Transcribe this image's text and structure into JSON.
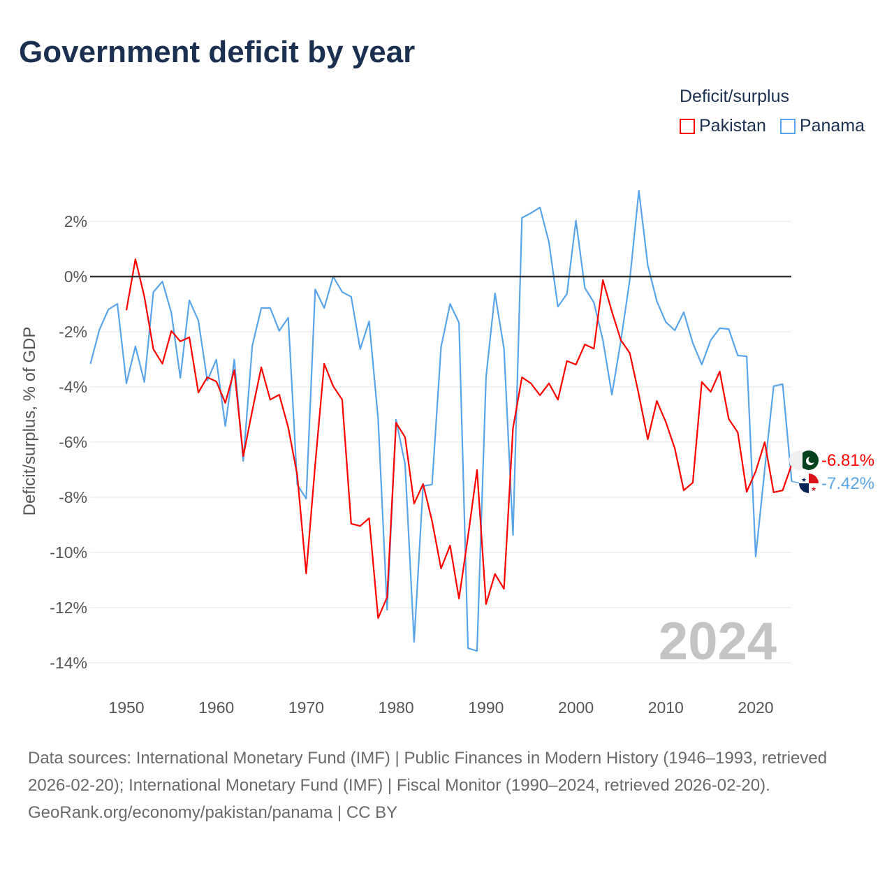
{
  "chart_data": {
    "type": "line",
    "title": "Government deficit by year",
    "xlabel": "",
    "ylabel": "Deficit/surplus, % of GDP",
    "xlim": [
      1946,
      2024
    ],
    "ylim": [
      -15,
      3.5
    ],
    "xticks": [
      1950,
      1960,
      1970,
      1980,
      1990,
      2000,
      2010,
      2020
    ],
    "yticks": [
      2,
      0,
      -2,
      -4,
      -6,
      -8,
      -10,
      -12,
      -14
    ],
    "ytick_labels": [
      "2%",
      "0%",
      "-2%",
      "-4%",
      "-6%",
      "-8%",
      "-10%",
      "-12%",
      "-14%"
    ],
    "grid": true,
    "legend_title": "Deficit/surplus",
    "legend_placement": "top-right",
    "watermark_year": "2024",
    "series": [
      {
        "name": "Pakistan",
        "color": "#ff0000",
        "start_year": 1950,
        "end_label": "-6.81%",
        "values": [
          -1.22,
          0.63,
          -0.73,
          -2.63,
          -3.16,
          -1.97,
          -2.35,
          -2.2,
          -4.2,
          -3.65,
          -3.8,
          -4.58,
          -3.39,
          -6.51,
          -4.86,
          -3.29,
          -4.46,
          -4.28,
          -5.47,
          -7.19,
          -10.76,
          -6.81,
          -3.16,
          -3.97,
          -4.46,
          -8.96,
          -9.04,
          -8.76,
          -12.38,
          -11.62,
          -5.3,
          -5.82,
          -8.23,
          -7.52,
          -8.86,
          -10.58,
          -9.75,
          -11.67,
          -9.42,
          -7.01,
          -11.87,
          -10.78,
          -11.32,
          -5.49,
          -3.65,
          -3.87,
          -4.3,
          -3.87,
          -4.46,
          -3.06,
          -3.19,
          -2.46,
          -2.61,
          -0.13,
          -1.27,
          -2.3,
          -2.78,
          -4.28,
          -5.9,
          -4.51,
          -5.27,
          -6.23,
          -7.75,
          -7.47,
          -3.82,
          -4.18,
          -3.44,
          -5.16,
          -5.65,
          -7.8,
          -7.06,
          -6.0,
          -7.82,
          -7.75,
          -6.81
        ]
      },
      {
        "name": "Panama",
        "color": "#5aa5ea",
        "start_year": 1946,
        "end_label": "-7.42%",
        "values": [
          -3.16,
          -1.92,
          -1.19,
          -0.99,
          -3.87,
          -2.53,
          -3.82,
          -0.56,
          -0.18,
          -1.32,
          -3.67,
          -0.86,
          -1.59,
          -3.77,
          -3.01,
          -5.42,
          -3.01,
          -6.68,
          -2.51,
          -1.14,
          -1.14,
          -1.97,
          -1.49,
          -7.54,
          -8.05,
          -0.46,
          -1.14,
          0.0,
          -0.56,
          -0.73,
          -2.63,
          -1.62,
          -5.16,
          -12.08,
          -5.19,
          -6.81,
          -13.24,
          -7.59,
          -7.54,
          -2.56,
          -0.99,
          -1.67,
          -13.47,
          -13.57,
          -3.65,
          -0.61,
          -2.61,
          -9.37,
          2.13,
          2.3,
          2.51,
          1.24,
          -1.09,
          -0.63,
          2.03,
          -0.41,
          -0.94,
          -2.3,
          -4.28,
          -2.33,
          -0.1,
          3.11,
          0.41,
          -0.89,
          -1.65,
          -1.95,
          -1.29,
          -2.41,
          -3.19,
          -2.3,
          -1.87,
          -1.9,
          -2.86,
          -2.89,
          -10.15,
          -6.99,
          -3.97,
          -3.9,
          -7.42
        ]
      }
    ]
  },
  "footer": {
    "sources": "Data sources: International Monetary Fund (IMF) | Public Finances in Modern History (1946–1993, retrieved 2026-02-20); International Monetary Fund (IMF) | Fiscal Monitor (1990–2024, retrieved 2026-02-20).",
    "credit": "GeoRank.org/economy/pakistan/panama | CC BY"
  }
}
